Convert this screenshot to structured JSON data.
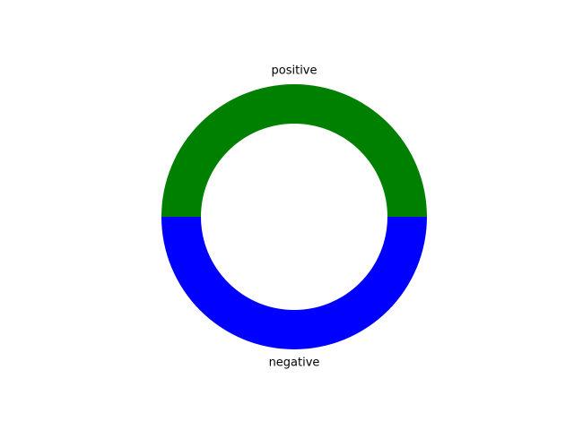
{
  "chart_data": {
    "type": "pie",
    "variant": "donut",
    "title": "",
    "categories": [
      "positive",
      "negative"
    ],
    "values": [
      50,
      50
    ],
    "colors": [
      "#008000",
      "#0000ff"
    ],
    "start_angle_deg": 0,
    "direction": "counterclockwise",
    "legend": "none",
    "labels_placement": "outside-slices"
  }
}
